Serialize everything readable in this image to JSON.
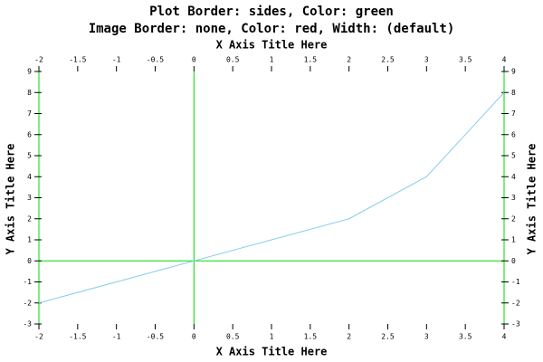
{
  "chart_data": {
    "type": "line",
    "title": "Plot Border: sides, Color: green",
    "subtitle": "Image Border: none, Color: red, Width: (default)",
    "x_label": "X Axis Title Here",
    "y_label": "Y Axis Title Here",
    "x": [
      -2,
      -1,
      0,
      1,
      2,
      3,
      4
    ],
    "series": [
      {
        "color": "#87ceeb",
        "values": [
          -2,
          -1,
          0,
          1,
          2,
          4,
          8
        ]
      }
    ],
    "xlim": [
      -2,
      4
    ],
    "xticks": [
      -2,
      -1.5,
      -1,
      -0.5,
      0,
      0.5,
      1,
      1.5,
      2,
      2.5,
      3,
      3.5,
      4
    ],
    "ylim": [
      -3,
      9
    ],
    "yticks": [
      -3,
      -2,
      -1,
      0,
      1,
      2,
      3,
      4,
      5,
      6,
      7,
      8,
      9
    ],
    "border_color": "#00dd00",
    "axis_color": "#00dd00"
  }
}
